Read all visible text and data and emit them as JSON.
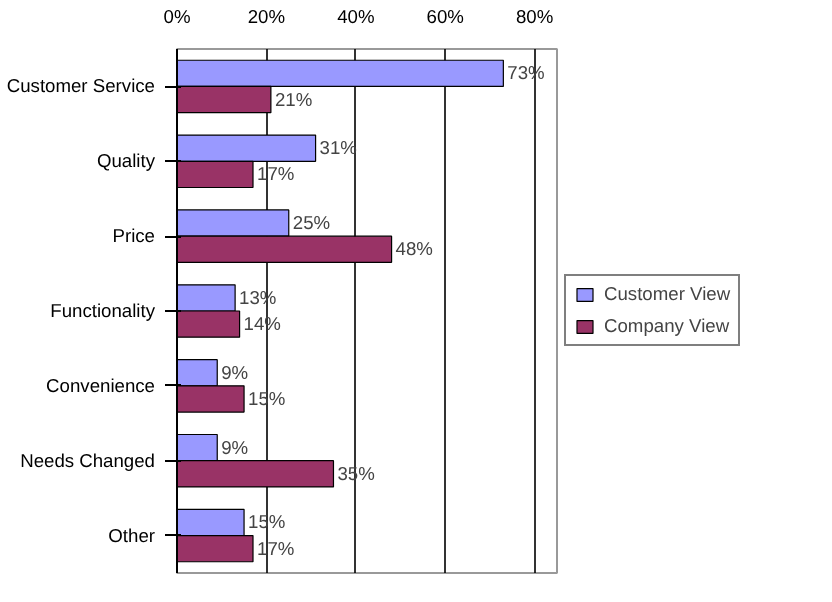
{
  "chart_data": {
    "type": "bar",
    "orientation": "horizontal",
    "categories": [
      "Customer Service",
      "Quality",
      "Price",
      "Functionality",
      "Convenience",
      "Needs Changed",
      "Other"
    ],
    "series": [
      {
        "name": "Customer View",
        "color": "#9999ff",
        "values": [
          73,
          31,
          25,
          13,
          9,
          9,
          15
        ],
        "value_labels": [
          "73%",
          "31%",
          "25%",
          "13%",
          "9%",
          "9%",
          "15%"
        ]
      },
      {
        "name": "Company View",
        "color": "#993366",
        "values": [
          21,
          17,
          48,
          14,
          15,
          35,
          17
        ],
        "value_labels": [
          "21%",
          "17%",
          "48%",
          "14%",
          "15%",
          "35%",
          "17%"
        ]
      }
    ],
    "xlim": [
      0,
      85
    ],
    "xticks": [
      {
        "value": 0,
        "label": "0%"
      },
      {
        "value": 20,
        "label": "20%"
      },
      {
        "value": 40,
        "label": "40%"
      },
      {
        "value": 60,
        "label": "60%"
      },
      {
        "value": 80,
        "label": "80%"
      }
    ],
    "grid": "x",
    "legend": "right"
  }
}
